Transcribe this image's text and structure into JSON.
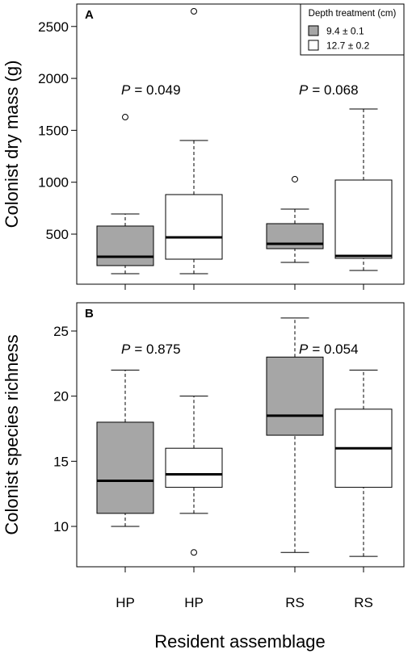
{
  "chart_data": [
    {
      "type": "box",
      "panel_label": "A",
      "y_label": "Colonist dry mass (g)",
      "categories": [
        null,
        null,
        null,
        null
      ],
      "ylim": [
        18,
        2716
      ],
      "yticks": [
        500,
        1000,
        1500,
        2000,
        2500
      ],
      "boxes": [
        {
          "color": "#a6a6a6",
          "whislo": 119,
          "q1": 197,
          "med": 282,
          "q3": 578,
          "whishi": 694,
          "fliers": [
            1627
          ]
        },
        {
          "color": "#ffffff",
          "whislo": 119,
          "q1": 259,
          "med": 469,
          "q3": 881,
          "whishi": 1402,
          "fliers": [
            2646
          ]
        },
        {
          "color": "#a6a6a6",
          "whislo": 228,
          "q1": 360,
          "med": 407,
          "q3": 601,
          "whishi": 741,
          "fliers": [
            1029
          ]
        },
        {
          "color": "#ffffff",
          "whislo": 150,
          "q1": 267,
          "med": 290,
          "q3": 1021,
          "whishi": 1705,
          "fliers": []
        }
      ],
      "annotations": [
        {
          "italic": "P",
          "text": "= 0.049"
        },
        {
          "italic": "P",
          "text": "= 0.068"
        }
      ],
      "legend": {
        "title": "Depth treatment (cm)",
        "position": "upper right",
        "entries": [
          {
            "name": "9.4 ± 0.1",
            "color": "#a6a6a6"
          },
          {
            "name": "12.7 ± 0.2",
            "color": "#ffffff"
          }
        ]
      }
    },
    {
      "type": "box",
      "panel_label": "B",
      "y_label": "Colonist species richness",
      "x_label": "Resident assemblage",
      "categories": [
        "HP",
        "HP",
        "RS",
        "RS"
      ],
      "ylim": [
        6.9,
        27.17
      ],
      "yticks": [
        10,
        15,
        20,
        25
      ],
      "boxes": [
        {
          "color": "#a6a6a6",
          "whislo": 10,
          "q1": 11,
          "med": 13.5,
          "q3": 18,
          "whishi": 22,
          "fliers": []
        },
        {
          "color": "#ffffff",
          "whislo": 11,
          "q1": 13,
          "med": 14,
          "q3": 16,
          "whishi": 20,
          "fliers": [
            8
          ]
        },
        {
          "color": "#a6a6a6",
          "whislo": 8,
          "q1": 17,
          "med": 18.5,
          "q3": 23,
          "whishi": 26,
          "fliers": []
        },
        {
          "color": "#ffffff",
          "whislo": 7.7,
          "q1": 13,
          "med": 16,
          "q3": 19,
          "whishi": 22,
          "fliers": []
        }
      ],
      "annotations": [
        {
          "italic": "P",
          "text": "= 0.875"
        },
        {
          "italic": "P",
          "text": "= 0.054"
        }
      ]
    }
  ]
}
